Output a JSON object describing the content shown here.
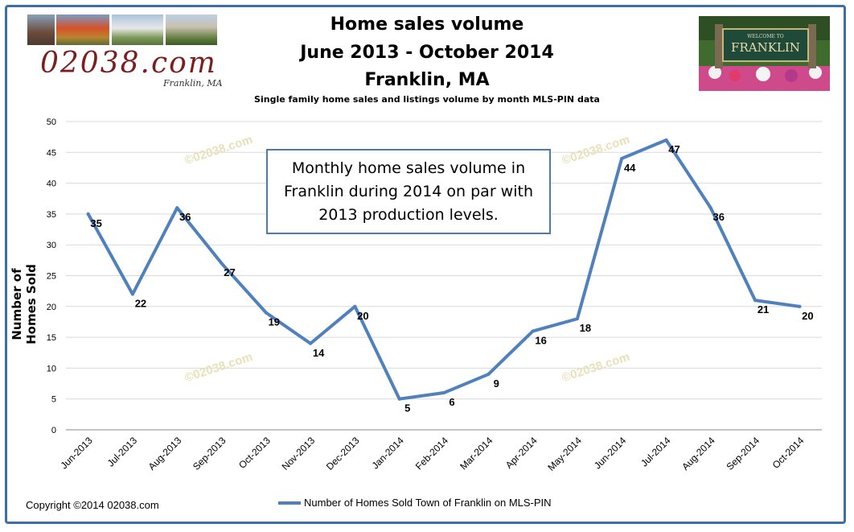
{
  "header": {
    "title_line1": "Home sales volume",
    "title_line2": "June 2013 - October 2014",
    "title_line3": "Franklin, MA",
    "subtitle": "Single family home sales and listings volume by month MLS-PIN data"
  },
  "logo": {
    "text": "02038.com",
    "sub": "Franklin, MA"
  },
  "sign": {
    "top": "WELCOME TO",
    "name": "FRANKLIN"
  },
  "annotation": {
    "text": "Monthly home sales volume in Franklin during 2014 on par with 2013 production levels."
  },
  "watermark": "©02038.com",
  "copyright": "Copyright ©2014 02038.com",
  "colors": {
    "line": "#4f81bd",
    "frame": "#3d6fa6",
    "grid": "#d9d9d9"
  },
  "chart_data": {
    "type": "line",
    "title": "Home sales volume",
    "ylabel": "Number of Homes Sold",
    "xlabel": "",
    "ylim": [
      0,
      50
    ],
    "yticks": [
      0,
      5,
      10,
      15,
      20,
      25,
      30,
      35,
      40,
      45,
      50
    ],
    "grid": true,
    "legend_placement": "bottom",
    "categories": [
      "Jun-2013",
      "Jul-2013",
      "Aug-2013",
      "Sep-2013",
      "Oct-2013",
      "Nov-2013",
      "Dec-2013",
      "Jan-2014",
      "Feb-2014",
      "Mar-2014",
      "Apr-2014",
      "May-2014",
      "Jun-2014",
      "Jul-2014",
      "Aug-2014",
      "Sep-2014",
      "Oct-2014"
    ],
    "series": [
      {
        "name": "Number of Homes Sold Town of Franklin on MLS-PIN",
        "values": [
          35,
          22,
          36,
          27,
          19,
          14,
          20,
          5,
          6,
          9,
          16,
          18,
          44,
          47,
          36,
          21,
          20
        ]
      }
    ]
  }
}
